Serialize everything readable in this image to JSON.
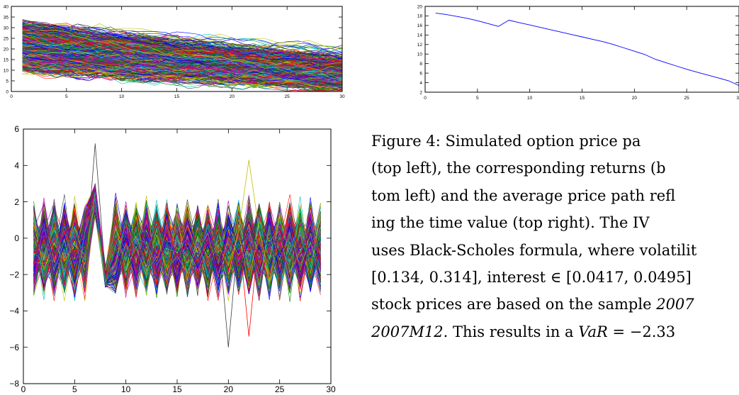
{
  "chart_data": [
    {
      "type": "line",
      "panel": "top left",
      "title": "",
      "xlabel": "",
      "ylabel": "",
      "x": [
        1,
        30
      ],
      "xlim": [
        0,
        30
      ],
      "ylim": [
        0,
        40
      ],
      "xticks": [
        "0",
        "5",
        "10",
        "15",
        "20",
        "25",
        "30"
      ],
      "yticks": [
        "0",
        "5",
        "10",
        "15",
        "20",
        "25",
        "30",
        "35",
        "40"
      ],
      "n_series_approx": 600,
      "start_range": [
        10,
        32
      ],
      "mean_start": 20,
      "mean_end": 7,
      "grid": false,
      "legend": "none"
    },
    {
      "type": "line",
      "panel": "top right",
      "title": "",
      "xlabel": "",
      "ylabel": "",
      "x": [
        1,
        2,
        3,
        4,
        5,
        6,
        7,
        8,
        9,
        10,
        11,
        12,
        13,
        14,
        15,
        16,
        17,
        18,
        19,
        20,
        21,
        22,
        23,
        24,
        25,
        26,
        27,
        28,
        29,
        30
      ],
      "series": [
        {
          "color": "#0000ff",
          "values": [
            18.6,
            18.3,
            17.9,
            17.5,
            17.0,
            16.4,
            15.8,
            17.1,
            16.6,
            16.1,
            15.6,
            15.1,
            14.6,
            14.1,
            13.6,
            13.1,
            12.6,
            12.0,
            11.3,
            10.6,
            9.9,
            8.9,
            8.2,
            7.5,
            6.8,
            6.2,
            5.6,
            5.0,
            4.4,
            3.4
          ]
        }
      ],
      "xlim": [
        0,
        30
      ],
      "ylim": [
        2,
        20
      ],
      "xticks": [
        "0",
        "5",
        "10",
        "15",
        "20",
        "25",
        "30"
      ],
      "yticks": [
        "2",
        "4",
        "6",
        "8",
        "10",
        "12",
        "14",
        "16",
        "18",
        "20"
      ],
      "grid": false,
      "legend": "none"
    },
    {
      "type": "line",
      "panel": "bottom left",
      "title": "",
      "xlabel": "",
      "ylabel": "",
      "x": [
        1,
        29
      ],
      "xlim": [
        0,
        30
      ],
      "ylim": [
        -8,
        6
      ],
      "xticks": [
        "0",
        "5",
        "10",
        "15",
        "20",
        "25",
        "30"
      ],
      "yticks": [
        "−8",
        "−6",
        "−4",
        "−2",
        "0",
        "2",
        "4",
        "6"
      ],
      "n_series_approx": 600,
      "band_range": [
        -3.5,
        3.0
      ],
      "spike": {
        "x": 7,
        "max": 5.2
      },
      "outliers": [
        {
          "x": 20,
          "value": -6.0
        },
        {
          "x": 22,
          "value": -5.4
        },
        {
          "x": 22,
          "value": 4.3
        }
      ],
      "grid": false,
      "legend": "none"
    }
  ],
  "palette": [
    "#0000ff",
    "#008000",
    "#ff0000",
    "#00bfbf",
    "#bf00bf",
    "#bfbf00",
    "#404040"
  ],
  "caption": {
    "lines": [
      [
        "Figure 4:  Simulated option price pa"
      ],
      [
        "(top left), the corresponding returns (b"
      ],
      [
        "tom left) and the average price path refl"
      ],
      [
        "ing the time value (top right).  The IV"
      ],
      [
        "uses Black-Scholes formula, where volatilit"
      ],
      [
        "[0.134, 0.314], interest ∈ [0.0417, 0.0495]"
      ],
      [
        "stock prices are based on the sample ",
        {
          "i": "2007"
        }
      ],
      [
        {
          "i": "2007M12"
        },
        ". This results in a ",
        {
          "i": "VaR"
        },
        " = −2.33"
      ]
    ]
  }
}
